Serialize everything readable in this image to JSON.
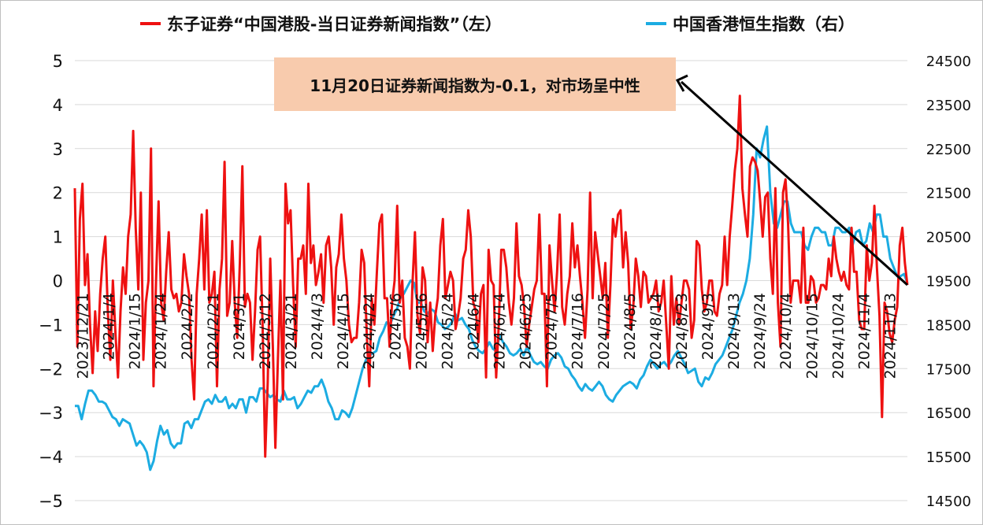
{
  "chart_data": {
    "type": "line",
    "title": "",
    "legend": "top",
    "grid": true,
    "left_axis": {
      "min": -5,
      "max": 5,
      "step": 1,
      "ticks": [
        "5",
        "4",
        "3",
        "2",
        "1",
        "0",
        "−1",
        "−2",
        "−3",
        "−4",
        "−5"
      ]
    },
    "right_axis": {
      "min": 14500,
      "max": 24500,
      "step": 1000,
      "ticks": [
        "24500",
        "23500",
        "22500",
        "21500",
        "20500",
        "19500",
        "18500",
        "17500",
        "16500",
        "15500",
        "14500"
      ]
    },
    "x_tick_labels": [
      "2023/12/21",
      "2024/1/4",
      "2024/1/15",
      "2024/1/24",
      "2024/2/2",
      "2024/2/21",
      "2024/3/1",
      "2024/3/12",
      "2024/3/21",
      "2024/4/3",
      "2024/4/15",
      "2024/4/24",
      "2024/5/6",
      "2024/5/16",
      "2024/5/24",
      "2024/6/4",
      "2024/6/14",
      "2024/6/25",
      "2024/7/5",
      "2024/7/16",
      "2024/7/25",
      "2024/8/5",
      "2024/8/14",
      "2024/8/23",
      "2024/9/3",
      "2024/9/13",
      "2024/9/24",
      "2024/10/4",
      "2024/10/15",
      "2024/10/24",
      "2024/11/4",
      "2024/11/13"
    ],
    "series": [
      {
        "name": "东子证券“中国港股-当日证券新闻指数”（左）",
        "color": "#ee1111",
        "axis": "left",
        "values": [
          2.1,
          -1.5,
          1.4,
          2.2,
          -0.1,
          0.6,
          -1.0,
          -2.1,
          -0.7,
          -1.6,
          -0.3,
          0.5,
          1.0,
          -0.7,
          -1.8,
          0.0,
          -1.2,
          -2.2,
          -0.7,
          0.3,
          -0.3,
          1.0,
          1.5,
          3.4,
          1.2,
          -0.2,
          2.0,
          -1.8,
          -0.5,
          0.0,
          3.0,
          -2.4,
          0.0,
          1.8,
          -0.5,
          -0.9,
          0.2,
          1.1,
          -0.2,
          -0.4,
          -0.3,
          -0.7,
          -0.5,
          0.6,
          0.1,
          -0.3,
          -1.8,
          -2.7,
          -0.3,
          0.5,
          1.5,
          -0.2,
          1.6,
          -0.5,
          -0.3,
          0.2,
          -2.4,
          -0.2,
          0.5,
          2.7,
          -0.8,
          -0.5,
          0.9,
          -0.5,
          -1.3,
          0.4,
          2.6,
          -0.6,
          -0.3,
          -0.5,
          -1.8,
          -0.7,
          0.7,
          1.0,
          -1.1,
          -4.0,
          -2.3,
          0.5,
          -1.5,
          -3.8,
          -1.8,
          0.0,
          -2.7,
          2.2,
          1.3,
          1.6,
          -0.1,
          -1.5,
          0.5,
          0.5,
          0.8,
          -0.3,
          2.2,
          0.4,
          0.8,
          -0.1,
          0.2,
          0.6,
          -0.5,
          0.8,
          1.0,
          0.3,
          -1.0,
          0.3,
          0.6,
          1.5,
          0.5,
          0.0,
          -1.0,
          -1.4,
          -1.3,
          -1.3,
          -0.5,
          0.7,
          0.4,
          -1.2,
          -2.4,
          -0.4,
          -1.0,
          0.2,
          1.3,
          1.5,
          -0.4,
          -0.4,
          -1.5,
          -0.5,
          0.0,
          1.7,
          -0.5,
          0.0,
          -1.3,
          -1.5,
          -2.0,
          -0.1,
          1.1,
          -0.8,
          -1.2,
          0.3,
          0.0,
          -1.4,
          -0.5,
          -1.6,
          -0.8,
          -0.4,
          0.8,
          1.4,
          -0.4,
          -0.1,
          0.2,
          0.0,
          -1.1,
          -0.8,
          -0.4,
          0.5,
          0.7,
          1.6,
          1.0,
          -0.5,
          -0.7,
          -1.4,
          -0.3,
          -0.1,
          -2.2,
          0.7,
          0.0,
          -0.1,
          -2.2,
          -1.0,
          0.7,
          0.7,
          0.3,
          -0.5,
          -1.0,
          -0.4,
          1.3,
          0.1,
          -0.1,
          -0.6,
          -1.5,
          -1.0,
          -0.6,
          -0.2,
          0.0,
          1.5,
          -0.3,
          -0.3,
          -2.4,
          0.8,
          0.0,
          -0.7,
          0.2,
          1.5,
          -0.6,
          -1.0,
          -0.3,
          0.1,
          1.3,
          0.3,
          0.8,
          0.1,
          -0.5,
          -1.3,
          -0.2,
          2.0,
          -0.4,
          1.1,
          0.6,
          0.1,
          -0.4,
          0.4,
          -1.3,
          -0.1,
          1.4,
          1.0,
          1.5,
          1.6,
          0.3,
          1.1,
          0.4,
          -1.1,
          -0.6,
          0.5,
          0.1,
          -0.6,
          0.2,
          0.1,
          -0.5,
          -0.4,
          -0.3,
          0.0,
          -0.7,
          -0.5,
          0.0,
          -1.0,
          -2.0,
          0.1,
          -1.0,
          -0.4,
          -1.0,
          -0.5,
          0.0,
          0.0,
          -0.2,
          -1.3,
          -0.9,
          0.9,
          0.8,
          -0.2,
          -0.7,
          -0.5,
          0.0,
          0.0,
          -0.7,
          -0.8,
          -0.3,
          -0.1,
          1.0,
          -0.1,
          1.0,
          1.7,
          2.5,
          3.0,
          4.2,
          2.1,
          1.5,
          1.0,
          2.6,
          2.8,
          2.7,
          2.5,
          1.8,
          1.0,
          1.9,
          2.0,
          0.5,
          -0.3,
          2.1,
          -0.5,
          -1.5,
          2.0,
          2.3,
          1.3,
          -0.5,
          0.0,
          0.0,
          0.0,
          -0.5,
          1.2,
          -0.5,
          -0.5,
          0.1,
          0.0,
          -0.5,
          -0.4,
          -0.1,
          -0.1,
          -0.2,
          0.5,
          0.1,
          1.0,
          0.5,
          0.2,
          0.0,
          0.2,
          -0.1,
          -0.2,
          1.2,
          0.2,
          0.2,
          -0.9,
          -1.1,
          -1.1,
          0.8,
          0.0,
          0.4,
          1.7,
          0.3,
          -0.8,
          -3.1,
          -0.5,
          -0.7,
          -1.2,
          -1.4,
          -0.9,
          -0.6,
          0.8,
          1.2,
          0.4,
          -0.1
        ],
        "rendered_as": "red line"
      },
      {
        "name": "中国香港恒生指数（右）",
        "color": "#1cace2",
        "axis": "right",
        "values": [
          16650,
          16650,
          16350,
          16700,
          17000,
          17000,
          16900,
          16750,
          16750,
          16700,
          16550,
          16400,
          16350,
          16200,
          16350,
          16300,
          16250,
          16000,
          15750,
          15850,
          15750,
          15600,
          15200,
          15400,
          15850,
          16200,
          16000,
          16100,
          15800,
          15700,
          15800,
          15800,
          16250,
          16300,
          16150,
          16350,
          16350,
          16550,
          16750,
          16800,
          16700,
          16900,
          16750,
          16750,
          16850,
          16600,
          16700,
          16600,
          16800,
          16800,
          16500,
          16850,
          16850,
          16750,
          17050,
          17050,
          16950,
          16850,
          16900,
          16800,
          16750,
          17000,
          16800,
          16800,
          16850,
          16600,
          16700,
          16850,
          17000,
          16950,
          17100,
          17100,
          17250,
          17050,
          16750,
          16600,
          16350,
          16350,
          16550,
          16500,
          16400,
          16600,
          16900,
          17200,
          17500,
          17700,
          17800,
          17850,
          17900,
          18200,
          18350,
          18550,
          18500,
          18700,
          18850,
          19100,
          19200,
          19350,
          19500,
          19450,
          19000,
          19000,
          18800,
          18750,
          18850,
          18800,
          18550,
          18500,
          18400,
          18450,
          18550,
          18750,
          18600,
          18650,
          18500,
          18400,
          18150,
          18000,
          17900,
          17850,
          17950,
          18100,
          17950,
          17900,
          18250,
          18100,
          18000,
          17850,
          17800,
          17850,
          17950,
          17800,
          18000,
          17800,
          17650,
          17600,
          17650,
          17550,
          17500,
          17700,
          17800,
          17850,
          17750,
          17550,
          17500,
          17350,
          17250,
          17100,
          17000,
          17150,
          17050,
          17000,
          17100,
          17200,
          17100,
          16900,
          16800,
          16750,
          16900,
          17000,
          17100,
          17150,
          17200,
          17150,
          17050,
          17250,
          17350,
          17550,
          17700,
          17600,
          17500,
          17600,
          17650,
          17550,
          17650,
          17800,
          17900,
          17750,
          17600,
          17400,
          17450,
          17500,
          17200,
          17100,
          17300,
          17250,
          17400,
          17600,
          17700,
          17800,
          18000,
          18200,
          18400,
          18700,
          19000,
          19200,
          19500,
          20000,
          21000,
          22500,
          22300,
          22700,
          23000,
          21500,
          20800,
          20700,
          21000,
          21300,
          21300,
          20800,
          20600,
          20600,
          20600,
          20300,
          20200,
          20500,
          20700,
          20700,
          20600,
          20600,
          20300,
          20300,
          20700,
          20700,
          20600,
          20600,
          20700,
          20300,
          20600,
          20650,
          20300,
          20400,
          20800,
          20600,
          21000,
          21000,
          20500,
          20500,
          20000,
          19800,
          19600,
          19600,
          19650,
          19450
        ]
      }
    ]
  },
  "annotation": {
    "text": "11月20日证券新闻指数为-0.1，对市场呈中性"
  },
  "colors": {
    "annotation_fill": "#f8cbad",
    "arrow": "#000000",
    "grid": "#d9d9d9"
  }
}
